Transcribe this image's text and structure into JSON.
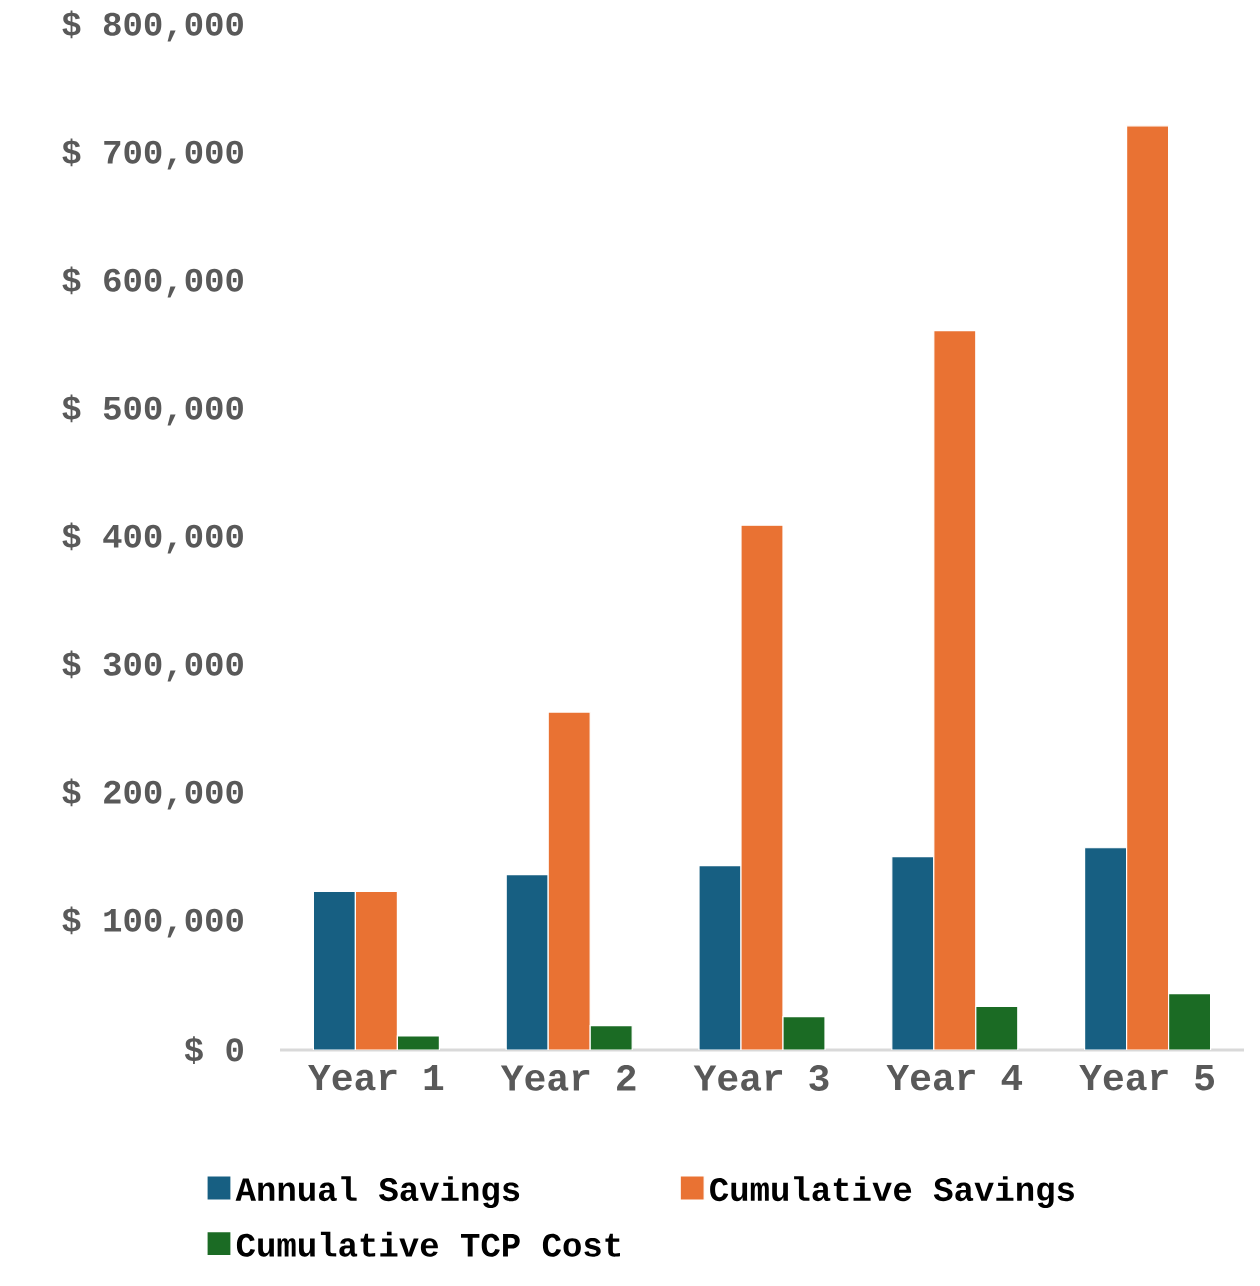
{
  "chart_data": {
    "type": "bar",
    "categories": [
      "Year 1",
      "Year 2",
      "Year 3",
      "Year 4",
      "Year 5"
    ],
    "series": [
      {
        "name": "Annual Savings",
        "color": "#175f82",
        "values": [
          124000,
          137000,
          144000,
          151000,
          158000
        ]
      },
      {
        "name": "Cumulative Savings",
        "color": "#e97233",
        "values": [
          124000,
          264000,
          410000,
          562000,
          722000
        ]
      },
      {
        "name": "Cumulative TCP Cost",
        "color": "#1b6b24",
        "values": [
          11000,
          19000,
          26000,
          34000,
          44000
        ]
      }
    ],
    "ylim": [
      0,
      800000
    ],
    "yticks": [
      {
        "value": 0,
        "label": "$ 0"
      },
      {
        "value": 100000,
        "label": "$ 100,000"
      },
      {
        "value": 200000,
        "label": "$ 200,000"
      },
      {
        "value": 300000,
        "label": "$ 300,000"
      },
      {
        "value": 400000,
        "label": "$ 400,000"
      },
      {
        "value": 500000,
        "label": "$ 500,000"
      },
      {
        "value": 600000,
        "label": "$ 600,000"
      },
      {
        "value": 700000,
        "label": "$ 700,000"
      },
      {
        "value": 800000,
        "label": "$ 800,000"
      }
    ],
    "grid": false,
    "legend": "bottom"
  }
}
